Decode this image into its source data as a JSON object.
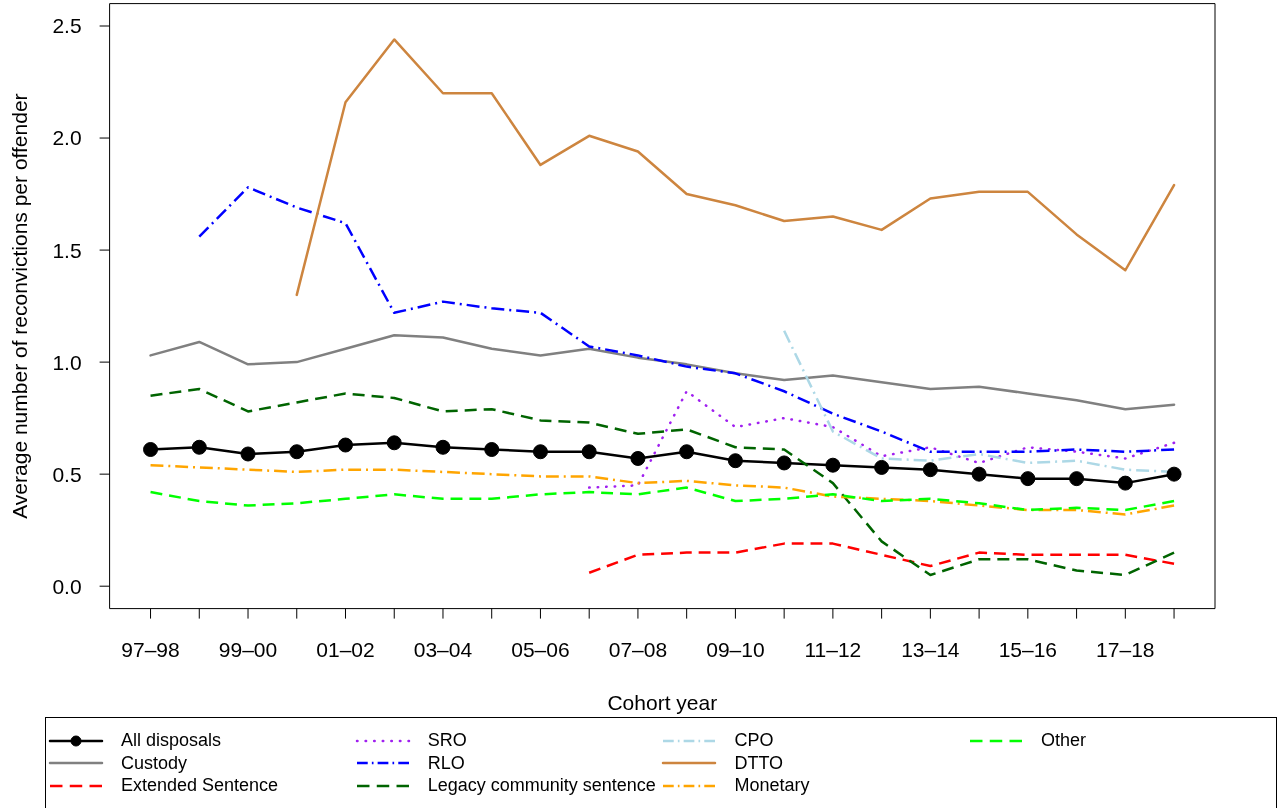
{
  "chart_data": {
    "type": "line",
    "xlabel": "Cohort year",
    "ylabel": "Average number of reconvictions per offender",
    "categories": [
      "97–98",
      null,
      "99–00",
      null,
      "01–02",
      null,
      "03–04",
      null,
      "05–06",
      null,
      "07–08",
      null,
      "09–10",
      null,
      "11–12",
      null,
      "13–14",
      null,
      "15–16",
      null,
      "17–18",
      null
    ],
    "ylim": [
      -0.1,
      2.6
    ],
    "yticks": [
      {
        "value": 0,
        "label": "0.0"
      },
      0.5,
      {
        "value": 1,
        "label": "1.0"
      },
      1.5,
      {
        "value": 2,
        "label": "2.0"
      },
      2.5
    ],
    "legend": "bottom",
    "series": [
      {
        "name": "All disposals",
        "color": "#000000",
        "line_style": "solid",
        "marker": "circle",
        "values": [
          0.61,
          0.62,
          0.59,
          0.6,
          0.63,
          0.64,
          0.62,
          0.61,
          0.6,
          0.6,
          0.57,
          0.6,
          0.56,
          0.55,
          0.54,
          0.53,
          0.52,
          0.5,
          0.48,
          0.48,
          0.46,
          0.5
        ]
      },
      {
        "name": "Custody",
        "color": "#808080",
        "line_style": "solid",
        "values": [
          1.03,
          1.09,
          0.99,
          1.0,
          1.06,
          1.12,
          1.11,
          1.06,
          1.03,
          1.06,
          1.02,
          0.99,
          0.95,
          0.92,
          0.94,
          0.91,
          0.88,
          0.89,
          0.86,
          0.83,
          0.79,
          0.81
        ]
      },
      {
        "name": "Extended Sentence",
        "color": "#ff0000",
        "line_style": "dashed",
        "values": [
          null,
          null,
          null,
          null,
          null,
          null,
          null,
          null,
          null,
          0.06,
          0.14,
          0.15,
          0.15,
          0.19,
          0.19,
          0.14,
          0.09,
          0.15,
          0.14,
          0.14,
          0.14,
          0.1
        ]
      },
      {
        "name": "SRO",
        "color": "#a020f0",
        "line_style": "dotted",
        "values": [
          null,
          null,
          null,
          null,
          null,
          null,
          null,
          null,
          null,
          0.44,
          0.45,
          0.87,
          0.71,
          0.75,
          0.71,
          0.58,
          0.62,
          0.55,
          0.62,
          0.6,
          0.57,
          0.64
        ]
      },
      {
        "name": "RLO",
        "color": "#0000ff",
        "line_style": "dashdot",
        "values": [
          null,
          1.56,
          1.78,
          1.69,
          1.62,
          1.22,
          1.27,
          1.24,
          1.22,
          1.07,
          1.03,
          0.98,
          0.95,
          0.87,
          0.77,
          0.69,
          0.6,
          0.6,
          0.6,
          0.61,
          0.6,
          0.61
        ]
      },
      {
        "name": "Legacy community sentence",
        "color": "#006400",
        "line_style": "dashed",
        "values": [
          0.85,
          0.88,
          0.78,
          0.82,
          0.86,
          0.84,
          0.78,
          0.79,
          0.74,
          0.73,
          0.68,
          0.7,
          0.62,
          0.61,
          0.46,
          0.2,
          0.05,
          0.12,
          0.12,
          0.07,
          0.05,
          0.15
        ]
      },
      {
        "name": "CPO",
        "color": "#add8e6",
        "line_style": "dashdot",
        "values": [
          null,
          null,
          null,
          null,
          null,
          null,
          null,
          null,
          null,
          null,
          null,
          null,
          null,
          1.14,
          0.69,
          0.57,
          0.56,
          0.59,
          0.55,
          0.56,
          0.52,
          0.51
        ]
      },
      {
        "name": "DTTO",
        "color": "#cd853f",
        "line_style": "solid",
        "values": [
          null,
          null,
          null,
          1.3,
          2.16,
          2.44,
          2.2,
          2.2,
          1.88,
          2.01,
          1.94,
          1.75,
          1.7,
          1.63,
          1.65,
          1.59,
          1.73,
          1.76,
          1.76,
          1.57,
          1.41,
          1.79
        ]
      },
      {
        "name": "Monetary",
        "color": "#ffa500",
        "line_style": "dashdot",
        "values": [
          0.54,
          0.53,
          0.52,
          0.51,
          0.52,
          0.52,
          0.51,
          0.5,
          0.49,
          0.49,
          0.46,
          0.47,
          0.45,
          0.44,
          0.4,
          0.39,
          0.38,
          0.36,
          0.34,
          0.34,
          0.32,
          0.36
        ]
      },
      {
        "name": "Other",
        "color": "#00ff00",
        "line_style": "dashed",
        "values": [
          0.42,
          0.38,
          0.36,
          0.37,
          0.39,
          0.41,
          0.39,
          0.39,
          0.41,
          0.42,
          0.41,
          0.44,
          0.38,
          0.39,
          0.41,
          0.38,
          0.39,
          0.37,
          0.34,
          0.35,
          0.34,
          0.38
        ]
      }
    ]
  }
}
